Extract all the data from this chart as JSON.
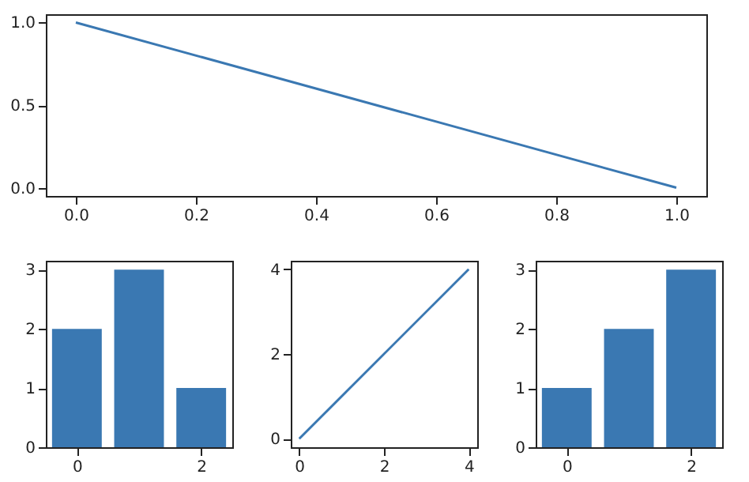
{
  "chart_data": [
    {
      "type": "line",
      "x": [
        0,
        1
      ],
      "series": [
        {
          "color": "#3a78b2",
          "values": [
            1,
            0
          ]
        }
      ],
      "xlim": [
        -0.05,
        1.05
      ],
      "ylim": [
        -0.05,
        1.05
      ],
      "xticks": [
        {
          "value": 0,
          "label": "0.0"
        },
        0.2,
        0.4,
        0.6,
        0.8,
        {
          "value": 1,
          "label": "1.0"
        }
      ],
      "yticks": [
        {
          "value": 0,
          "label": "0.0"
        },
        0.5,
        {
          "value": 1,
          "label": "1.0"
        }
      ],
      "grid": false
    },
    {
      "type": "bar",
      "x": [
        0,
        1,
        2
      ],
      "series": [
        {
          "color": "#3a78b2",
          "values": [
            2,
            3,
            1
          ]
        }
      ],
      "xlim": [
        -0.5,
        2.5
      ],
      "ylim": [
        0,
        3.15
      ],
      "xticks": [
        0,
        2
      ],
      "yticks": [
        0,
        1,
        2,
        3
      ],
      "grid": false
    },
    {
      "type": "line",
      "x": [
        0,
        4
      ],
      "series": [
        {
          "color": "#3a78b2",
          "values": [
            0,
            4
          ]
        }
      ],
      "xlim": [
        -0.2,
        4.2
      ],
      "ylim": [
        -0.2,
        4.2
      ],
      "xticks": [
        0,
        2,
        4
      ],
      "yticks": [
        0,
        2,
        4
      ],
      "grid": false
    },
    {
      "type": "bar",
      "x": [
        0,
        1,
        2
      ],
      "series": [
        {
          "color": "#3a78b2",
          "values": [
            1,
            2,
            3
          ]
        }
      ],
      "xlim": [
        -0.5,
        2.5
      ],
      "ylim": [
        0,
        3.15
      ],
      "xticks": [
        0,
        2
      ],
      "yticks": [
        0,
        1,
        2,
        3
      ],
      "grid": false
    }
  ]
}
